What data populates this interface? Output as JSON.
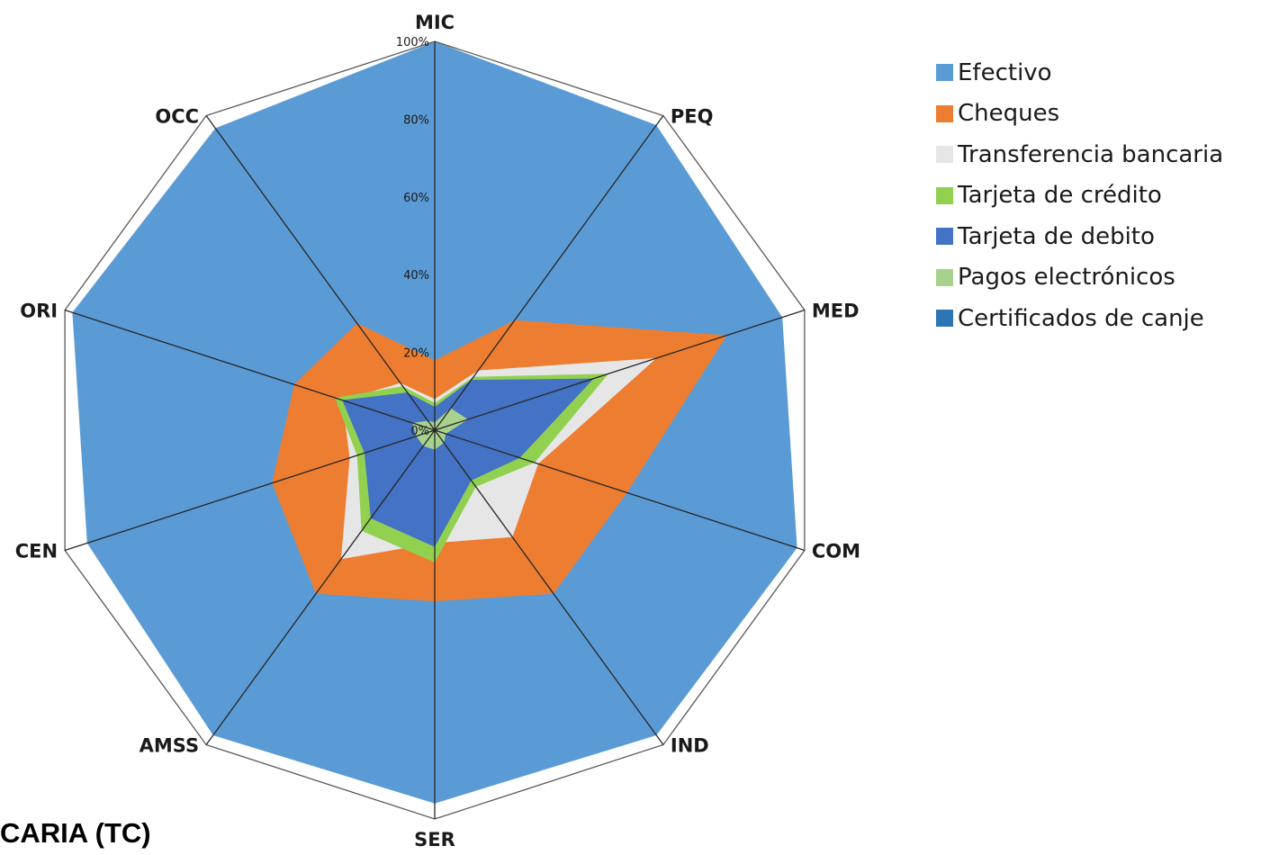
{
  "chart_data": {
    "type": "radar",
    "title": "",
    "categories": [
      "MIC",
      "PEQ",
      "MED",
      "COM",
      "IND",
      "SER",
      "AMSS",
      "CEN",
      "ORI",
      "OCC"
    ],
    "radial_ticks": [
      "0%",
      "20%",
      "40%",
      "60%",
      "80%",
      "100%"
    ],
    "rlim": [
      0,
      1
    ],
    "legend_position": "right",
    "series": [
      {
        "name": "Efectivo",
        "color": "#5b9bd5",
        "values": [
          1.0,
          0.97,
          0.94,
          0.98,
          0.97,
          0.96,
          0.97,
          0.94,
          0.98,
          0.96
        ]
      },
      {
        "name": "Cheques",
        "color": "#ed7d31",
        "values": [
          0.18,
          0.35,
          0.79,
          0.52,
          0.52,
          0.44,
          0.52,
          0.44,
          0.38,
          0.34
        ]
      },
      {
        "name": "Transferencia bancaria",
        "color": "#e7e6e6",
        "values": [
          0.08,
          0.19,
          0.6,
          0.28,
          0.34,
          0.29,
          0.41,
          0.23,
          0.25,
          0.15
        ]
      },
      {
        "name": "Tarjeta de crédito",
        "color": "#92d050",
        "values": [
          0.07,
          0.17,
          0.47,
          0.27,
          0.18,
          0.34,
          0.32,
          0.21,
          0.27,
          0.14
        ]
      },
      {
        "name": "Tarjeta de debito",
        "color": "#4472c4",
        "values": [
          0.06,
          0.16,
          0.43,
          0.23,
          0.16,
          0.3,
          0.28,
          0.19,
          0.25,
          0.12
        ]
      },
      {
        "name": "Pagos electrónicos",
        "color": "#a9d18e",
        "values": [
          0.02,
          0.07,
          0.09,
          0.03,
          0.04,
          0.05,
          0.05,
          0.05,
          0.06,
          0.03
        ]
      },
      {
        "name": "Certificados de canje",
        "color": "#2e75b6",
        "values": [
          0.005,
          0.005,
          0.005,
          0.005,
          0.005,
          0.005,
          0.005,
          0.005,
          0.005,
          0.005
        ]
      }
    ]
  },
  "caption": "CARIA (TC)"
}
